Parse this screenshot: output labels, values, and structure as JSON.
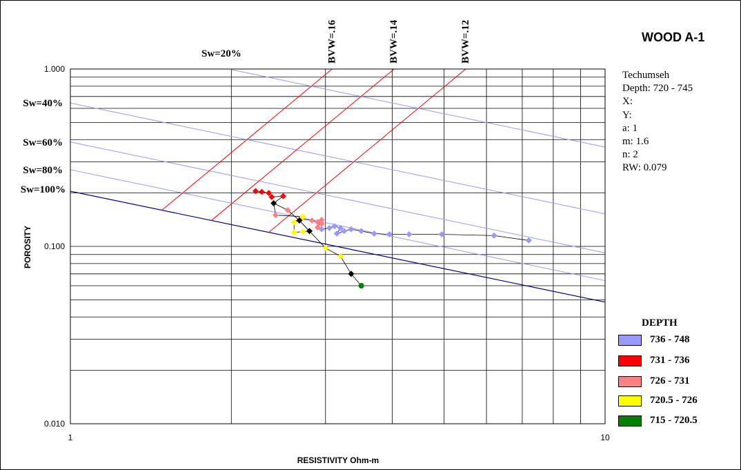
{
  "chart_data": {
    "type": "scatter",
    "title": "WOOD A-1",
    "xlabel": "RESISTIVITY Ohm-m",
    "ylabel": "POROSITY",
    "x_scale": "log",
    "y_scale": "log",
    "xlim": [
      1,
      10
    ],
    "ylim": [
      0.01,
      1
    ],
    "x_ticks": [
      "1",
      "10"
    ],
    "y_ticks": [
      "0.010",
      "0.100",
      "1.000"
    ],
    "grid": true,
    "legend_title": "DEPTH",
    "legend_position": "bottom-right",
    "info": [
      "Techumseh",
      "Depth: 720 - 745",
      "X:",
      "Y:",
      "a: 1",
      "m: 1.6",
      "n: 2",
      "RW: 0.079"
    ],
    "sw_lines": [
      {
        "label": "Sw=20%",
        "sw": 0.2
      },
      {
        "label": "Sw=40%",
        "sw": 0.4
      },
      {
        "label": "Sw=60%",
        "sw": 0.6
      },
      {
        "label": "Sw=80%",
        "sw": 0.8
      },
      {
        "label": "Sw=100%",
        "sw": 1.0
      }
    ],
    "bvw_lines": [
      {
        "label": "BVW=.16",
        "bvw": 0.16
      },
      {
        "label": "BVW=.14",
        "bvw": 0.14
      },
      {
        "label": "BVW=.12",
        "bvw": 0.12
      }
    ],
    "series": [
      {
        "name": "736 - 748",
        "color": "#9999ff",
        "points": [
          [
            2.95,
            0.125
          ],
          [
            3.05,
            0.127
          ],
          [
            3.12,
            0.13
          ],
          [
            3.2,
            0.127
          ],
          [
            3.15,
            0.118
          ],
          [
            3.25,
            0.122
          ],
          [
            3.35,
            0.125
          ],
          [
            3.5,
            0.122
          ],
          [
            3.7,
            0.118
          ],
          [
            3.95,
            0.117
          ],
          [
            4.3,
            0.117
          ],
          [
            4.95,
            0.117
          ],
          [
            6.2,
            0.115
          ],
          [
            7.2,
            0.108
          ]
        ]
      },
      {
        "name": "731 - 736",
        "color": "#ff0000",
        "points": [
          [
            2.22,
            0.205
          ],
          [
            2.28,
            0.203
          ],
          [
            2.35,
            0.2
          ],
          [
            2.38,
            0.19
          ],
          [
            2.5,
            0.192
          ]
        ]
      },
      {
        "name": "726 - 731",
        "color": "#ff8080",
        "points": [
          [
            2.55,
            0.16
          ],
          [
            2.42,
            0.15
          ],
          [
            2.7,
            0.143
          ],
          [
            2.83,
            0.14
          ],
          [
            2.9,
            0.137
          ],
          [
            2.95,
            0.141
          ],
          [
            2.95,
            0.134
          ],
          [
            2.9,
            0.128
          ]
        ]
      },
      {
        "name": "720.5 - 726",
        "color": "#ffff00",
        "points": [
          [
            2.62,
            0.12
          ],
          [
            2.72,
            0.121
          ],
          [
            2.8,
            0.122
          ],
          [
            2.62,
            0.137
          ],
          [
            2.72,
            0.147
          ],
          [
            3.0,
            0.098
          ],
          [
            3.2,
            0.088
          ]
        ]
      },
      {
        "name": "715 - 720.5",
        "color": "#008000",
        "points": [
          [
            3.5,
            0.06
          ]
        ]
      },
      {
        "name": "",
        "color": "#000000",
        "points": [
          [
            2.4,
            0.175
          ],
          [
            2.68,
            0.14
          ],
          [
            2.8,
            0.122
          ],
          [
            3.35,
            0.07
          ]
        ]
      }
    ]
  }
}
